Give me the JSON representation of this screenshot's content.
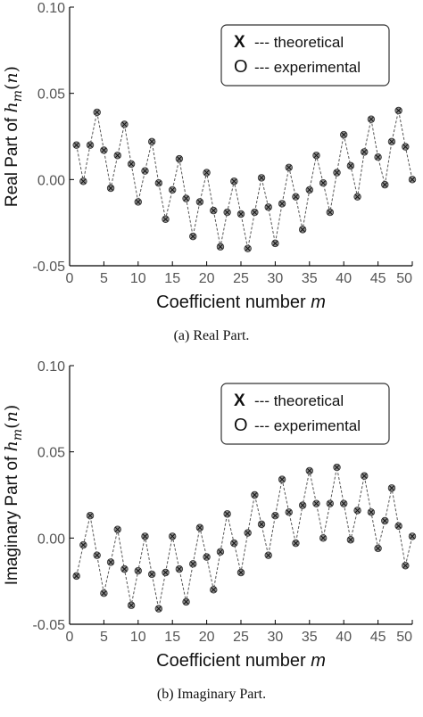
{
  "chart_data": [
    {
      "type": "scatter",
      "ylabel_prefix": "Real Part of ",
      "ylabel_math": "h_m(n)",
      "xlabel_prefix": "Coefficient number ",
      "xlabel_var": "m",
      "caption": "(a) Real Part.",
      "xlim": [
        0,
        50
      ],
      "ylim": [
        -0.05,
        0.1
      ],
      "xticks": [
        "0",
        "5",
        "10",
        "15",
        "20",
        "25",
        "30",
        "35",
        "40",
        "45",
        "50"
      ],
      "yticks": [
        "0.10",
        "0.05",
        "0.00",
        "-0.05"
      ],
      "legend": [
        {
          "marker": "x",
          "label": "--- theoretical"
        },
        {
          "marker": "o",
          "label": "--- experimental"
        }
      ],
      "series": [
        {
          "name": "theoretical",
          "x": [
            1,
            2,
            3,
            4,
            5,
            6,
            7,
            8,
            9,
            10,
            11,
            12,
            13,
            14,
            15,
            16,
            17,
            18,
            19,
            20,
            21,
            22,
            23,
            24,
            25,
            26,
            27,
            28,
            29,
            30,
            31,
            32,
            33,
            34,
            35,
            36,
            37,
            38,
            39,
            40,
            41,
            42,
            43,
            44,
            45,
            46,
            47,
            48,
            49,
            50
          ],
          "y": [
            0.02,
            -0.001,
            0.02,
            0.039,
            0.017,
            -0.005,
            0.014,
            0.032,
            0.009,
            -0.013,
            0.005,
            0.022,
            -0.002,
            -0.023,
            -0.006,
            0.012,
            -0.011,
            -0.033,
            -0.013,
            0.004,
            -0.018,
            -0.039,
            -0.019,
            -0.001,
            -0.02,
            -0.04,
            -0.019,
            0.001,
            -0.016,
            -0.037,
            -0.014,
            0.007,
            -0.01,
            -0.029,
            -0.006,
            0.014,
            -0.002,
            -0.019,
            0.004,
            0.026,
            0.008,
            -0.01,
            0.016,
            0.035,
            0.013,
            -0.003,
            0.022,
            0.04,
            0.019,
            0.0
          ]
        },
        {
          "name": "experimental",
          "x": [
            1,
            2,
            3,
            4,
            5,
            6,
            7,
            8,
            9,
            10,
            11,
            12,
            13,
            14,
            15,
            16,
            17,
            18,
            19,
            20,
            21,
            22,
            23,
            24,
            25,
            26,
            27,
            28,
            29,
            30,
            31,
            32,
            33,
            34,
            35,
            36,
            37,
            38,
            39,
            40,
            41,
            42,
            43,
            44,
            45,
            46,
            47,
            48,
            49,
            50
          ],
          "y": [
            0.02,
            -0.001,
            0.02,
            0.039,
            0.017,
            -0.005,
            0.014,
            0.032,
            0.009,
            -0.013,
            0.005,
            0.022,
            -0.002,
            -0.023,
            -0.006,
            0.012,
            -0.011,
            -0.033,
            -0.013,
            0.004,
            -0.018,
            -0.039,
            -0.019,
            -0.001,
            -0.02,
            -0.04,
            -0.019,
            0.001,
            -0.016,
            -0.037,
            -0.014,
            0.007,
            -0.01,
            -0.029,
            -0.006,
            0.014,
            -0.002,
            -0.019,
            0.004,
            0.026,
            0.008,
            -0.01,
            0.016,
            0.035,
            0.013,
            -0.003,
            0.022,
            0.04,
            0.019,
            0.0
          ]
        }
      ]
    },
    {
      "type": "scatter",
      "ylabel_prefix": "Imaginary Part of ",
      "ylabel_math": "h_m(n)",
      "xlabel_prefix": "Coefficient number ",
      "xlabel_var": "m",
      "caption": "(b) Imaginary Part.",
      "xlim": [
        0,
        50
      ],
      "ylim": [
        -0.05,
        0.1
      ],
      "xticks": [
        "0",
        "5",
        "10",
        "15",
        "20",
        "25",
        "30",
        "35",
        "40",
        "45",
        "50"
      ],
      "yticks": [
        "0.10",
        "0.05",
        "0.00",
        "-0.05"
      ],
      "legend": [
        {
          "marker": "x",
          "label": "--- theoretical"
        },
        {
          "marker": "o",
          "label": "--- experimental"
        }
      ],
      "series": [
        {
          "name": "theoretical",
          "x": [
            1,
            2,
            3,
            4,
            5,
            6,
            7,
            8,
            9,
            10,
            11,
            12,
            13,
            14,
            15,
            16,
            17,
            18,
            19,
            20,
            21,
            22,
            23,
            24,
            25,
            26,
            27,
            28,
            29,
            30,
            31,
            32,
            33,
            34,
            35,
            36,
            37,
            38,
            39,
            40,
            41,
            42,
            43,
            44,
            45,
            46,
            47,
            48,
            49,
            50
          ],
          "y": [
            -0.022,
            -0.004,
            0.013,
            -0.01,
            -0.032,
            -0.014,
            0.005,
            -0.018,
            -0.039,
            -0.019,
            0.001,
            -0.021,
            -0.041,
            -0.02,
            0.001,
            -0.018,
            -0.037,
            -0.015,
            0.006,
            -0.011,
            -0.03,
            -0.008,
            0.014,
            -0.003,
            -0.02,
            0.003,
            0.025,
            0.008,
            -0.01,
            0.013,
            0.034,
            0.015,
            -0.003,
            0.019,
            0.039,
            0.02,
            0.0,
            0.02,
            0.041,
            0.02,
            -0.001,
            0.016,
            0.036,
            0.015,
            -0.006,
            0.01,
            0.029,
            0.007,
            -0.016,
            0.001
          ]
        },
        {
          "name": "experimental",
          "x": [
            1,
            2,
            3,
            4,
            5,
            6,
            7,
            8,
            9,
            10,
            11,
            12,
            13,
            14,
            15,
            16,
            17,
            18,
            19,
            20,
            21,
            22,
            23,
            24,
            25,
            26,
            27,
            28,
            29,
            30,
            31,
            32,
            33,
            34,
            35,
            36,
            37,
            38,
            39,
            40,
            41,
            42,
            43,
            44,
            45,
            46,
            47,
            48,
            49,
            50
          ],
          "y": [
            -0.022,
            -0.004,
            0.013,
            -0.01,
            -0.032,
            -0.014,
            0.005,
            -0.018,
            -0.039,
            -0.019,
            0.001,
            -0.021,
            -0.041,
            -0.02,
            0.001,
            -0.018,
            -0.037,
            -0.015,
            0.006,
            -0.011,
            -0.03,
            -0.008,
            0.014,
            -0.003,
            -0.02,
            0.003,
            0.025,
            0.008,
            -0.01,
            0.013,
            0.034,
            0.015,
            -0.003,
            0.019,
            0.039,
            0.02,
            0.0,
            0.02,
            0.041,
            0.02,
            -0.001,
            0.016,
            0.036,
            0.015,
            -0.006,
            0.01,
            0.029,
            0.007,
            -0.016,
            0.001
          ]
        }
      ]
    }
  ],
  "colors": {
    "axis": "#000000",
    "tick_label": "#555555",
    "dashed_line": "#555555",
    "marker_fill": "#8a8a8a",
    "marker_edge": "#333333",
    "legend_border": "#333333"
  }
}
